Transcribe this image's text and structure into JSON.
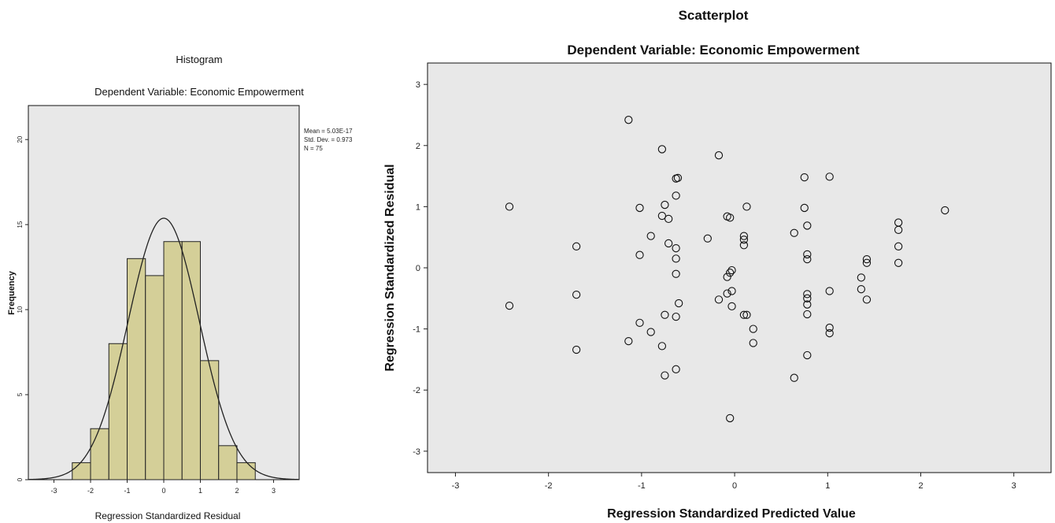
{
  "chart_data": [
    {
      "type": "bar",
      "title": "Histogram",
      "subtitle": "Dependent Variable: Economic Empowerment",
      "xlabel": "Regression Standardized Residual",
      "ylabel": "Frequency",
      "bin_width": 0.5,
      "bin_starts": [
        -2.5,
        -2.0,
        -1.5,
        -1.0,
        -0.5,
        0.0,
        0.5,
        1.0,
        1.5,
        2.0
      ],
      "values": [
        1,
        3,
        8,
        13,
        12,
        14,
        14,
        7,
        2,
        1
      ],
      "normal_curve": {
        "mean": 0,
        "std": 0.973
      },
      "stats": [
        "Mean = 5.03E-17",
        "Std. Dev. = 0.973",
        "N = 75"
      ],
      "xlim": [
        -3.7,
        3.7
      ],
      "ylim": [
        0,
        22
      ],
      "xticks": [
        -3,
        -2,
        -1,
        0,
        1,
        2,
        3
      ],
      "yticks": [
        0,
        5,
        10,
        15,
        20
      ],
      "bar_color": "#d4cf98",
      "plot_background": "#e8e8e8",
      "grid": false,
      "legend": "right"
    },
    {
      "type": "scatter",
      "title": "Scatterplot",
      "subtitle": "Dependent Variable: Economic Empowerment",
      "xlabel": "Regression Standardized Predicted Value",
      "ylabel": "Regression Standardized Residual",
      "xlim": [
        -3.3,
        3.4
      ],
      "ylim": [
        -3.35,
        3.35
      ],
      "xticks": [
        -3,
        -2,
        -1,
        0,
        1,
        2,
        3
      ],
      "yticks": [
        -3,
        -2,
        -1,
        0,
        1,
        2,
        3
      ],
      "plot_background": "#e8e8e8",
      "grid": false,
      "marker": "open-circle",
      "points": [
        [
          -2.42,
          1.0
        ],
        [
          -2.42,
          -0.62
        ],
        [
          -1.7,
          0.35
        ],
        [
          -1.7,
          -0.44
        ],
        [
          -1.7,
          -1.34
        ],
        [
          -1.14,
          2.42
        ],
        [
          -1.14,
          -1.2
        ],
        [
          -1.02,
          0.98
        ],
        [
          -1.02,
          0.21
        ],
        [
          -1.02,
          -0.9
        ],
        [
          -0.9,
          0.52
        ],
        [
          -0.9,
          -1.05
        ],
        [
          -0.78,
          1.94
        ],
        [
          -0.78,
          0.85
        ],
        [
          -0.78,
          -1.28
        ],
        [
          -0.75,
          1.03
        ],
        [
          -0.75,
          -0.77
        ],
        [
          -0.75,
          -1.76
        ],
        [
          -0.71,
          0.8
        ],
        [
          -0.71,
          0.4
        ],
        [
          -0.63,
          1.46
        ],
        [
          -0.63,
          1.18
        ],
        [
          -0.63,
          0.32
        ],
        [
          -0.63,
          0.15
        ],
        [
          -0.63,
          -0.1
        ],
        [
          -0.63,
          -0.8
        ],
        [
          -0.63,
          -1.66
        ],
        [
          -0.61,
          1.47
        ],
        [
          -0.6,
          -0.58
        ],
        [
          -0.29,
          0.48
        ],
        [
          -0.17,
          1.84
        ],
        [
          -0.17,
          -0.52
        ],
        [
          -0.08,
          0.84
        ],
        [
          -0.08,
          -0.15
        ],
        [
          -0.08,
          -0.42
        ],
        [
          -0.05,
          0.82
        ],
        [
          -0.05,
          -0.08
        ],
        [
          -0.05,
          -2.46
        ],
        [
          -0.03,
          -0.04
        ],
        [
          -0.03,
          -0.38
        ],
        [
          -0.03,
          -0.63
        ],
        [
          0.1,
          0.52
        ],
        [
          0.1,
          0.46
        ],
        [
          0.1,
          0.37
        ],
        [
          0.1,
          -0.77
        ],
        [
          0.13,
          1.0
        ],
        [
          0.13,
          -0.77
        ],
        [
          0.2,
          -1.0
        ],
        [
          0.2,
          -1.23
        ],
        [
          0.64,
          0.57
        ],
        [
          0.64,
          -1.8
        ],
        [
          0.75,
          1.48
        ],
        [
          0.75,
          0.98
        ],
        [
          0.78,
          0.69
        ],
        [
          0.78,
          0.22
        ],
        [
          0.78,
          0.14
        ],
        [
          0.78,
          -0.43
        ],
        [
          0.78,
          -0.5
        ],
        [
          0.78,
          -0.6
        ],
        [
          0.78,
          -0.76
        ],
        [
          0.78,
          -1.43
        ],
        [
          1.02,
          1.49
        ],
        [
          1.02,
          -0.38
        ],
        [
          1.02,
          -0.98
        ],
        [
          1.02,
          -1.07
        ],
        [
          1.36,
          -0.16
        ],
        [
          1.36,
          -0.35
        ],
        [
          1.42,
          0.14
        ],
        [
          1.42,
          0.08
        ],
        [
          1.42,
          -0.52
        ],
        [
          1.76,
          0.74
        ],
        [
          1.76,
          0.62
        ],
        [
          1.76,
          0.35
        ],
        [
          1.76,
          0.08
        ],
        [
          2.26,
          0.94
        ]
      ]
    }
  ]
}
